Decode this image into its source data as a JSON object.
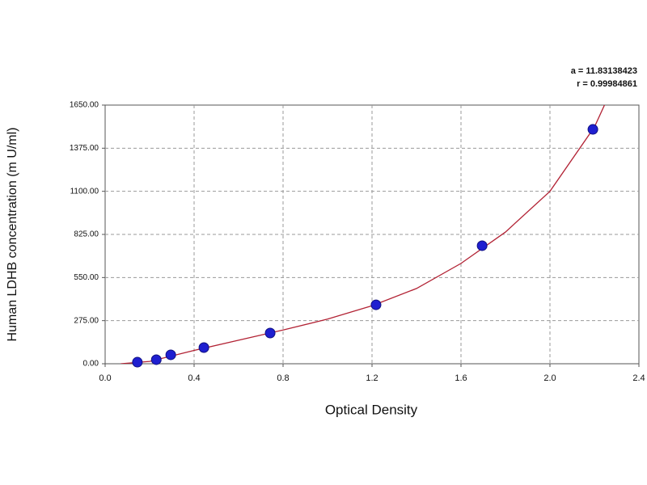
{
  "chart_data": {
    "type": "scatter",
    "xlabel": "Optical Density",
    "ylabel": "Human LDHB concentration (m U/ml)",
    "annotations": [
      "a = 11.83138423",
      "r = 0.99984861"
    ],
    "series": [
      {
        "color": "#1f1fd0",
        "x": [
          0.145,
          0.23,
          0.295,
          0.444,
          0.742,
          1.218,
          1.695,
          2.193
        ],
        "values": [
          10,
          26,
          57,
          103,
          196,
          376,
          753,
          1495
        ]
      }
    ],
    "fit": {
      "color": "#b22234",
      "x": [
        0.07,
        0.2,
        0.4,
        0.6,
        0.8,
        1.0,
        1.2,
        1.4,
        1.6,
        1.8,
        2.0,
        2.2,
        2.25
      ],
      "values": [
        0,
        15,
        85,
        150,
        215,
        285,
        370,
        480,
        640,
        840,
        1100,
        1510,
        1665
      ]
    },
    "xlim": [
      0,
      2.4
    ],
    "xticks": [
      {
        "value": 0,
        "label": "0.0"
      },
      0.4,
      0.8,
      1.2,
      1.6,
      {
        "value": 2,
        "label": "2.0"
      },
      2.4
    ],
    "ylim": [
      0,
      1650
    ],
    "yticks": [
      {
        "value": 0,
        "label": "0.00"
      },
      {
        "value": 275,
        "label": "275.00"
      },
      {
        "value": 550,
        "label": "550.00"
      },
      {
        "value": 825,
        "label": "825.00"
      },
      {
        "value": 1100,
        "label": "1100.00"
      },
      {
        "value": 1375,
        "label": "1375.00"
      },
      {
        "value": 1650,
        "label": "1650.00"
      }
    ],
    "grid": true
  }
}
